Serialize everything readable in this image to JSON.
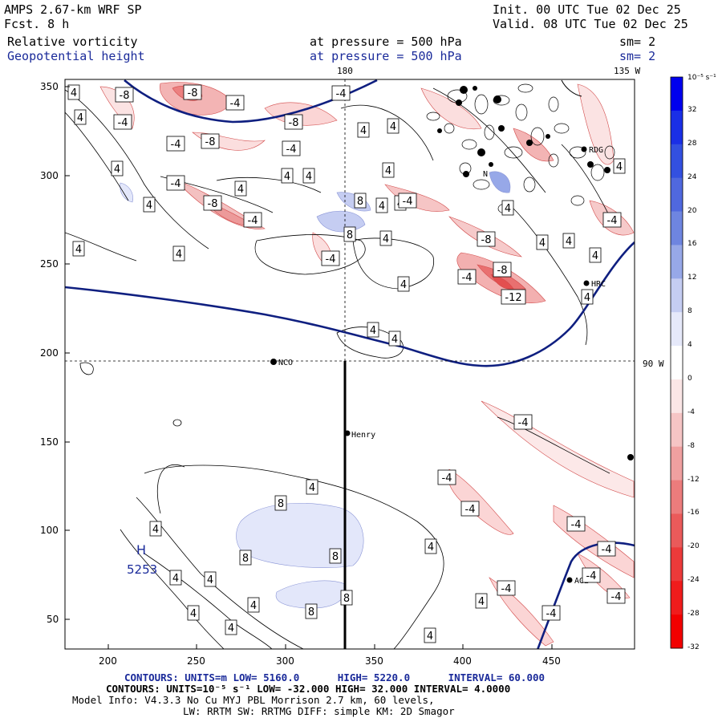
{
  "header": {
    "title": "AMPS 2.67-km WRF SP",
    "forecast": "Fcst.    8 h",
    "init": "Init. 00 UTC Tue 02 Dec 25",
    "valid": "Valid. 08 UTC Tue 02 Dec 25",
    "field1_name": "Relative vorticity",
    "field1_level": "at pressure =  500 hPa",
    "field1_sm": "sm= 2",
    "field2_name": "Geopotential height",
    "field2_level": "at pressure =  500 hPa",
    "field2_sm": "sm= 2",
    "lon_label_180": "180",
    "lon_label_135w": "135 W",
    "lat_label_90w": "90 W"
  },
  "axes": {
    "x_ticks": [
      "200",
      "250",
      "300",
      "350",
      "400",
      "450"
    ],
    "y_ticks": [
      "50",
      "100",
      "150",
      "200",
      "250",
      "300",
      "350"
    ]
  },
  "colorbar": {
    "units": "10⁻⁵ s⁻¹",
    "labels": [
      "32",
      "28",
      "24",
      "20",
      "16",
      "12",
      "8",
      "4",
      "0",
      "-4",
      "-8",
      "-12",
      "-16",
      "-20",
      "-24",
      "-28",
      "-32"
    ],
    "colors": [
      "#0000ee",
      "#1a2fe6",
      "#3350e0",
      "#5068de",
      "#6e85e0",
      "#97a8e8",
      "#c5cdf2",
      "#e6e9fa",
      "#ffffff",
      "#fbe6e6",
      "#f6c5c5",
      "#f0a0a0",
      "#ec7c7c",
      "#ea5a5a",
      "#ec3a3a",
      "#f01c1c",
      "#f20000"
    ]
  },
  "stations": {
    "nco": "NCO",
    "henry": "Henry",
    "hrc": "HRC",
    "rdg": "RDG",
    "n": "N",
    "ag": "AG2"
  },
  "contour_labels": {
    "pos4": "4",
    "pos8": "8",
    "neg4": "-4",
    "neg8": "-8",
    "neg12": "-12"
  },
  "high_marker": {
    "symbol": "H",
    "value": "5253"
  },
  "footer": {
    "line1_label": "CONTOURS:  UNITS=m  LOW=  5160.0",
    "line1_high": "HIGH=  5220.0",
    "line1_interval": "INTERVAL=  60.000",
    "line2": "CONTOURS:  UNITS=10⁻⁵ s⁻¹  LOW= -32.000      HIGH=  32.000      INTERVAL=  4.0000",
    "line3": "Model Info: V4.3.3    No Cu    MYJ PBL   Morrison            2.7 km,  60 levels,",
    "line4": "LW: RRTM SW: RRTMG   DIFF: simple KM: 2D Smagor"
  }
}
